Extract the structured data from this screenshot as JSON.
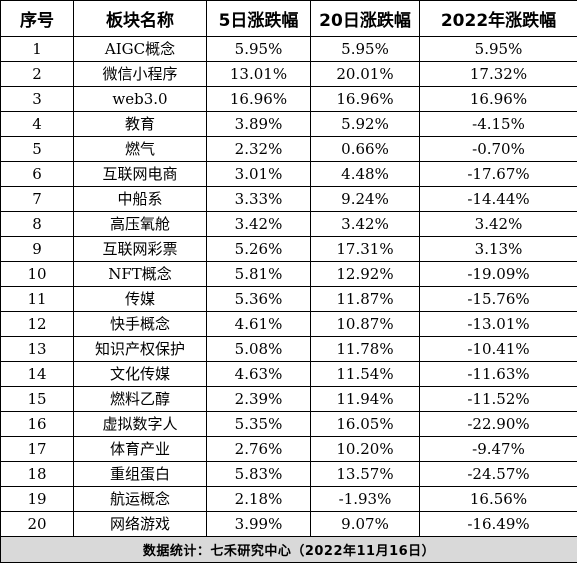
{
  "table": {
    "headers": [
      "序号",
      "板块名称",
      "5日涨跌幅",
      "20日涨跌幅",
      "2022年涨跌幅"
    ],
    "rows": [
      [
        "1",
        "AIGC概念",
        "5.95%",
        "5.95%",
        "5.95%"
      ],
      [
        "2",
        "微信小程序",
        "13.01%",
        "20.01%",
        "17.32%"
      ],
      [
        "3",
        "web3.0",
        "16.96%",
        "16.96%",
        "16.96%"
      ],
      [
        "4",
        "教育",
        "3.89%",
        "5.92%",
        "-4.15%"
      ],
      [
        "5",
        "燃气",
        "2.32%",
        "0.66%",
        "-0.70%"
      ],
      [
        "6",
        "互联网电商",
        "3.01%",
        "4.48%",
        "-17.67%"
      ],
      [
        "7",
        "中船系",
        "3.33%",
        "9.24%",
        "-14.44%"
      ],
      [
        "8",
        "高压氧舱",
        "3.42%",
        "3.42%",
        "3.42%"
      ],
      [
        "9",
        "互联网彩票",
        "5.26%",
        "17.31%",
        "3.13%"
      ],
      [
        "10",
        "NFT概念",
        "5.81%",
        "12.92%",
        "-19.09%"
      ],
      [
        "11",
        "传媒",
        "5.36%",
        "11.87%",
        "-15.76%"
      ],
      [
        "12",
        "快手概念",
        "4.61%",
        "10.87%",
        "-13.01%"
      ],
      [
        "13",
        "知识产权保护",
        "5.08%",
        "11.78%",
        "-10.41%"
      ],
      [
        "14",
        "文化传媒",
        "4.63%",
        "11.54%",
        "-11.63%"
      ],
      [
        "15",
        "燃料乙醇",
        "2.39%",
        "11.94%",
        "-11.52%"
      ],
      [
        "16",
        "虚拟数字人",
        "5.35%",
        "16.05%",
        "-22.90%"
      ],
      [
        "17",
        "体育产业",
        "2.76%",
        "10.20%",
        "-9.47%"
      ],
      [
        "18",
        "重组蛋白",
        "5.83%",
        "13.57%",
        "-24.57%"
      ],
      [
        "19",
        "航运概念",
        "2.18%",
        "-1.93%",
        "16.56%"
      ],
      [
        "20",
        "网络游戏",
        "3.99%",
        "9.07%",
        "-16.49%"
      ]
    ],
    "footer": "数据统计：七禾研究中心（2022年11月16日）"
  },
  "colors": {
    "footer_background": "#d9d9d9",
    "border": "#000000"
  }
}
